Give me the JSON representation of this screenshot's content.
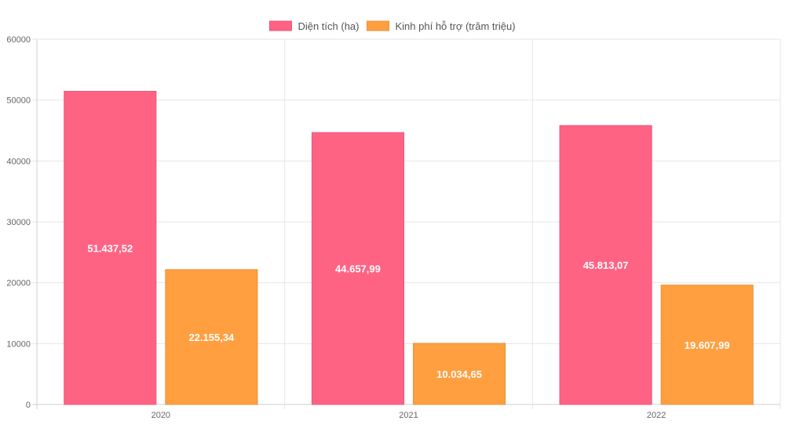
{
  "chart_data": {
    "type": "bar",
    "title": "",
    "xlabel": "",
    "ylabel": "",
    "categories": [
      "2020",
      "2021",
      "2022"
    ],
    "ylim": [
      0,
      60000
    ],
    "yticks": [
      0,
      10000,
      20000,
      30000,
      40000,
      50000,
      60000
    ],
    "grid": true,
    "legend_position": "top-center",
    "series": [
      {
        "name": "Diện tích (ha)",
        "color": "#ff6384",
        "values": [
          51437.52,
          44657.99,
          45813.07
        ],
        "labels": [
          "51.437,52",
          "44.657,99",
          "45.813,07"
        ]
      },
      {
        "name": "Kinh phí hỗ trợ (trăm triệu)",
        "color": "#ff9f40",
        "values": [
          22155.34,
          10034.65,
          19607.99
        ],
        "labels": [
          "22.155,34",
          "10.034,65",
          "19.607,99"
        ]
      }
    ]
  }
}
